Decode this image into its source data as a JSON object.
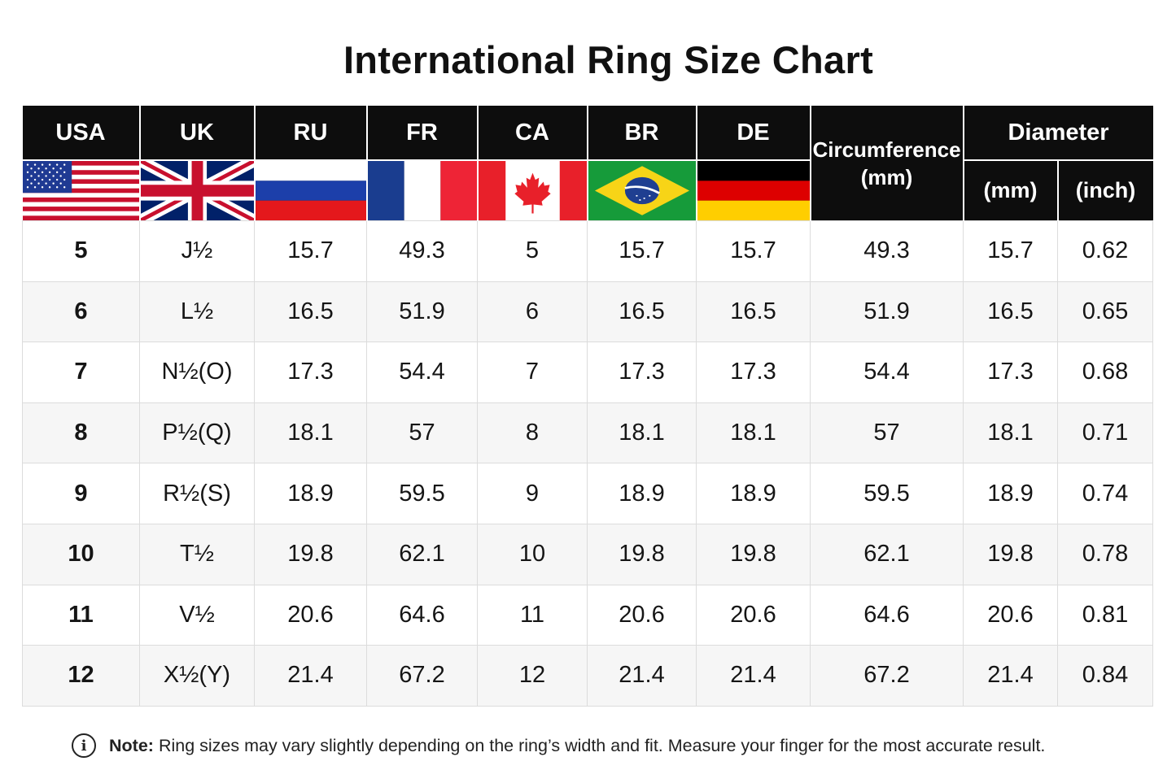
{
  "title": "International Ring Size Chart",
  "headers": {
    "usa": "USA",
    "uk": "UK",
    "ru": "RU",
    "fr": "FR",
    "ca": "CA",
    "br": "BR",
    "de": "DE",
    "circumference_line1": "Circumference",
    "circumference_line2": "(mm)",
    "diameter": "Diameter",
    "diameter_mm": "(mm)",
    "diameter_inch": "(inch)"
  },
  "flags": [
    "us-flag-icon",
    "uk-flag-icon",
    "russia-flag-icon",
    "france-flag-icon",
    "canada-flag-icon",
    "brazil-flag-icon",
    "germany-flag-icon"
  ],
  "rows": [
    [
      "5",
      "J½",
      "15.7",
      "49.3",
      "5",
      "15.7",
      "15.7",
      "49.3",
      "15.7",
      "0.62"
    ],
    [
      "6",
      "L½",
      "16.5",
      "51.9",
      "6",
      "16.5",
      "16.5",
      "51.9",
      "16.5",
      "0.65"
    ],
    [
      "7",
      "N½(O)",
      "17.3",
      "54.4",
      "7",
      "17.3",
      "17.3",
      "54.4",
      "17.3",
      "0.68"
    ],
    [
      "8",
      "P½(Q)",
      "18.1",
      "57",
      "8",
      "18.1",
      "18.1",
      "57",
      "18.1",
      "0.71"
    ],
    [
      "9",
      "R½(S)",
      "18.9",
      "59.5",
      "9",
      "18.9",
      "18.9",
      "59.5",
      "18.9",
      "0.74"
    ],
    [
      "10",
      "T½",
      "19.8",
      "62.1",
      "10",
      "19.8",
      "19.8",
      "62.1",
      "19.8",
      "0.78"
    ],
    [
      "11",
      "V½",
      "20.6",
      "64.6",
      "11",
      "20.6",
      "20.6",
      "64.6",
      "20.6",
      "0.81"
    ],
    [
      "12",
      "X½(Y)",
      "21.4",
      "67.2",
      "12",
      "21.4",
      "21.4",
      "67.2",
      "21.4",
      "0.84"
    ]
  ],
  "note": {
    "icon": "info-icon",
    "label": "Note:",
    "text": "Ring sizes may vary slightly depending on the ring’s width and fit. Measure your finger for the most accurate result."
  },
  "colors": {
    "header_bg": "#0d0d0d",
    "us_red": "#c8102e",
    "us_blue": "#1f3a93",
    "uk_blue": "#012169",
    "ru_blue": "#1c3faa",
    "ru_red": "#e4181c",
    "fr_blue": "#1a3d8f",
    "fr_red": "#ee2436",
    "ca_red": "#e8202a",
    "br_green": "#169b3a",
    "br_yellow": "#f7d417",
    "br_blue": "#1f3f91",
    "de_black": "#000000",
    "de_red": "#dd0000",
    "de_gold": "#ffce00"
  }
}
